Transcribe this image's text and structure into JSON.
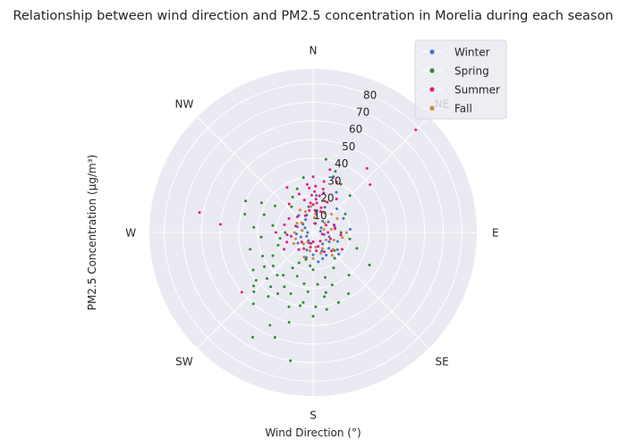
{
  "chart_data": {
    "type": "scatter",
    "projection": "polar",
    "title": "Relationship between wind direction and PM2.5 concentration in Morelia during each season",
    "xlabel": "Wind Direction (°)",
    "ylabel": "PM2.5 Concentration (µg/m³)",
    "direction_labels": [
      "N",
      "NE",
      "E",
      "SE",
      "S",
      "SW",
      "W",
      "NW"
    ],
    "r_ticks": [
      10,
      20,
      30,
      40,
      50,
      60,
      70,
      80
    ],
    "rlim": [
      0,
      88
    ],
    "theta_zero": "N",
    "theta_direction": "clockwise",
    "grid": true,
    "legend_position": "top-right",
    "series": [
      {
        "name": "Winter",
        "color": "#4472c4",
        "points": [
          [
            10,
            12
          ],
          [
            25,
            15
          ],
          [
            40,
            8
          ],
          [
            60,
            5
          ],
          [
            80,
            4
          ],
          [
            100,
            6
          ],
          [
            120,
            10
          ],
          [
            135,
            12
          ],
          [
            150,
            14
          ],
          [
            170,
            8
          ],
          [
            190,
            6
          ],
          [
            210,
            5
          ],
          [
            240,
            4
          ],
          [
            270,
            3
          ],
          [
            300,
            5
          ],
          [
            330,
            8
          ],
          [
            350,
            14
          ],
          [
            5,
            20
          ],
          [
            30,
            25
          ],
          [
            45,
            18
          ],
          [
            75,
            12
          ],
          [
            95,
            15
          ],
          [
            110,
            14
          ],
          [
            160,
            15
          ],
          [
            200,
            10
          ],
          [
            230,
            8
          ],
          [
            290,
            9
          ],
          [
            320,
            12
          ],
          [
            20,
            32
          ],
          [
            130,
            18
          ],
          [
            180,
            12
          ],
          [
            250,
            7
          ],
          [
            15,
            5
          ],
          [
            55,
            10
          ],
          [
            85,
            20
          ],
          [
            140,
            8
          ],
          [
            170,
            16
          ],
          [
            220,
            12
          ],
          [
            280,
            6
          ],
          [
            340,
            10
          ],
          [
            65,
            18
          ],
          [
            105,
            9
          ],
          [
            125,
            16
          ],
          [
            155,
            11
          ],
          [
            195,
            14
          ],
          [
            235,
            10
          ],
          [
            265,
            9
          ],
          [
            310,
            7
          ]
        ]
      },
      {
        "name": "Spring",
        "color": "#2e8b2e",
        "points": [
          [
            180,
            45
          ],
          [
            190,
            40
          ],
          [
            200,
            35
          ],
          [
            210,
            38
          ],
          [
            220,
            30
          ],
          [
            230,
            28
          ],
          [
            170,
            35
          ],
          [
            160,
            30
          ],
          [
            195,
            50
          ],
          [
            205,
            55
          ],
          [
            215,
            42
          ],
          [
            225,
            45
          ],
          [
            185,
            32
          ],
          [
            175,
            28
          ],
          [
            165,
            25
          ],
          [
            150,
            22
          ],
          [
            240,
            25
          ],
          [
            250,
            20
          ],
          [
            260,
            18
          ],
          [
            270,
            15
          ],
          [
            280,
            22
          ],
          [
            290,
            28
          ],
          [
            300,
            32
          ],
          [
            320,
            18
          ],
          [
            200,
            60
          ],
          [
            210,
            65
          ],
          [
            190,
            70
          ],
          [
            220,
            50
          ],
          [
            230,
            40
          ],
          [
            180,
            20
          ],
          [
            140,
            18
          ],
          [
            130,
            15
          ],
          [
            200,
            25
          ],
          [
            210,
            22
          ],
          [
            190,
            28
          ],
          [
            185,
            18
          ],
          [
            195,
            15
          ],
          [
            205,
            18
          ],
          [
            215,
            28
          ],
          [
            225,
            35
          ],
          [
            235,
            32
          ],
          [
            245,
            30
          ],
          [
            255,
            35
          ],
          [
            265,
            28
          ],
          [
            275,
            32
          ],
          [
            285,
            38
          ],
          [
            295,
            40
          ],
          [
            305,
            25
          ],
          [
            20,
            35
          ],
          [
            30,
            30
          ],
          [
            45,
            28
          ],
          [
            60,
            20
          ],
          [
            10,
            40
          ],
          [
            350,
            30
          ],
          [
            340,
            25
          ],
          [
            330,
            22
          ],
          [
            120,
            35
          ],
          [
            110,
            25
          ],
          [
            100,
            20
          ],
          [
            90,
            15
          ],
          [
            140,
            30
          ],
          [
            150,
            38
          ],
          [
            160,
            40
          ],
          [
            170,
            42
          ],
          [
            208,
            33
          ],
          [
            218,
            37
          ],
          [
            228,
            43
          ],
          [
            238,
            38
          ],
          [
            198,
            42
          ],
          [
            188,
            38
          ],
          [
            178,
            40
          ],
          [
            168,
            33
          ]
        ]
      },
      {
        "name": "Summer",
        "color": "#e6197d",
        "points": [
          [
            0,
            15
          ],
          [
            5,
            18
          ],
          [
            10,
            20
          ],
          [
            15,
            22
          ],
          [
            355,
            16
          ],
          [
            350,
            12
          ],
          [
            345,
            18
          ],
          [
            20,
            12
          ],
          [
            8,
            10
          ],
          [
            3,
            25
          ],
          [
            12,
            28
          ],
          [
            18,
            14
          ],
          [
            25,
            18
          ],
          [
            35,
            22
          ],
          [
            40,
            45
          ],
          [
            45,
            78
          ],
          [
            50,
            40
          ],
          [
            70,
            12
          ],
          [
            90,
            8
          ],
          [
            110,
            10
          ],
          [
            135,
            14
          ],
          [
            160,
            8
          ],
          [
            200,
            6
          ],
          [
            230,
            8
          ],
          [
            260,
            12
          ],
          [
            270,
            20
          ],
          [
            275,
            50
          ],
          [
            280,
            62
          ],
          [
            230,
            50
          ],
          [
            300,
            15
          ],
          [
            320,
            20
          ],
          [
            330,
            28
          ],
          [
            340,
            22
          ],
          [
            0,
            30
          ],
          [
            15,
            35
          ],
          [
            25,
            30
          ],
          [
            355,
            24
          ],
          [
            5,
            12
          ],
          [
            95,
            15
          ],
          [
            120,
            18
          ],
          [
            150,
            12
          ],
          [
            180,
            5
          ],
          [
            210,
            10
          ],
          [
            250,
            15
          ],
          [
            290,
            10
          ],
          [
            310,
            8
          ],
          [
            10,
            5
          ],
          [
            60,
            8
          ],
          [
            80,
            12
          ],
          [
            100,
            5
          ],
          [
            140,
            6
          ],
          [
            170,
            10
          ],
          [
            190,
            8
          ],
          [
            220,
            12
          ],
          [
            240,
            18
          ],
          [
            265,
            14
          ],
          [
            285,
            16
          ],
          [
            315,
            12
          ],
          [
            335,
            10
          ],
          [
            358,
            20
          ],
          [
            2,
            22
          ],
          [
            7,
            16
          ],
          [
            13,
            24
          ],
          [
            353,
            26
          ]
        ]
      },
      {
        "name": "Fall",
        "color": "#cc8833",
        "points": [
          [
            10,
            10
          ],
          [
            30,
            12
          ],
          [
            50,
            8
          ],
          [
            80,
            10
          ],
          [
            110,
            12
          ],
          [
            130,
            14
          ],
          [
            150,
            10
          ],
          [
            170,
            8
          ],
          [
            190,
            10
          ],
          [
            220,
            8
          ],
          [
            250,
            10
          ],
          [
            280,
            6
          ],
          [
            310,
            8
          ],
          [
            340,
            12
          ],
          [
            355,
            14
          ],
          [
            20,
            18
          ],
          [
            60,
            15
          ],
          [
            90,
            18
          ],
          [
            120,
            8
          ],
          [
            140,
            16
          ],
          [
            160,
            12
          ],
          [
            200,
            14
          ],
          [
            240,
            12
          ],
          [
            300,
            10
          ],
          [
            330,
            14
          ],
          [
            5,
            8
          ],
          [
            45,
            14
          ],
          [
            75,
            6
          ],
          [
            100,
            16
          ],
          [
            180,
            14
          ],
          [
            210,
            6
          ],
          [
            270,
            10
          ]
        ]
      }
    ]
  }
}
